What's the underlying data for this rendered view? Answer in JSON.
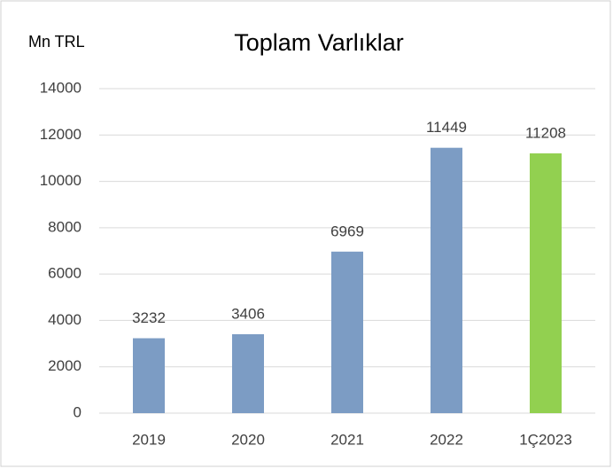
{
  "chart_data": {
    "type": "bar",
    "title": "Toplam Varlıklar",
    "ylabel": "Mn TRL",
    "categories": [
      "2019",
      "2020",
      "2021",
      "2022",
      "1Ç2023"
    ],
    "values": [
      3232,
      3406,
      6969,
      11449,
      11208
    ],
    "colors": [
      "#7c9cc4",
      "#7c9cc4",
      "#7c9cc4",
      "#7c9cc4",
      "#92d050"
    ],
    "ylim": [
      0,
      14000
    ],
    "yticks": [
      0,
      2000,
      4000,
      6000,
      8000,
      10000,
      12000,
      14000
    ],
    "grid": true
  }
}
